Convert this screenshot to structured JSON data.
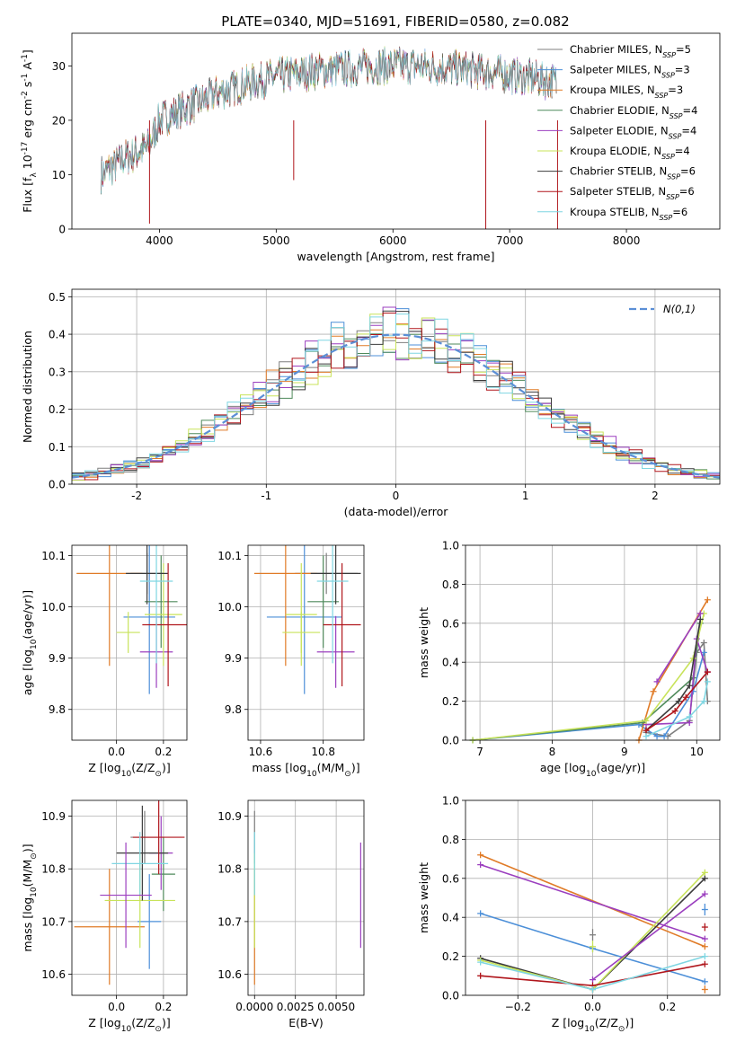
{
  "figure_title": "PLATE=0340, MJD=51691, FIBERID=0580, z=0.082",
  "model_colors": {
    "Chabrier MILES": "#7f7f7f",
    "Salpeter MILES": "#4c8fd8",
    "Kroupa MILES": "#e07b27",
    "Chabrier ELODIE": "#4f8a5b",
    "Salpeter ELODIE": "#9b3fbf",
    "Kroupa ELODIE": "#c8e35a",
    "Chabrier STELIB": "#3b3b3b",
    "Salpeter STELIB": "#b0161c",
    "Kroupa STELIB": "#7fd6e2"
  },
  "chart_data": [
    {
      "type": "line",
      "id": "spectrum",
      "title": "PLATE=0340, MJD=51691, FIBERID=0580, z=0.082",
      "xlabel": "wavelength [Angstrom, rest frame]",
      "ylabel": "Flux [f_λ 10^-17 erg cm^-2 s^-1 A^-1]",
      "xlim": [
        3250,
        8800
      ],
      "ylim": [
        0,
        36
      ],
      "xticks": [
        4000,
        5000,
        6000,
        7000,
        8000
      ],
      "yticks": [
        0,
        10,
        20,
        30
      ],
      "grid": false,
      "legend_position": "top-right",
      "legend": [
        "Chabrier MILES, N_SSP=5",
        "Salpeter MILES, N_SSP=3",
        "Kroupa MILES, N_SSP=3",
        "Chabrier ELODIE, N_SSP=4",
        "Salpeter ELODIE, N_SSP=4",
        "Kroupa ELODIE, N_SSP=4",
        "Chabrier STELIB, N_SSP=6",
        "Salpeter STELIB, N_SSP=6",
        "Kroupa STELIB, N_SSP=6"
      ],
      "series_keys": [
        "Chabrier MILES",
        "Salpeter MILES",
        "Kroupa MILES",
        "Chabrier ELODIE",
        "Salpeter ELODIE",
        "Kroupa ELODIE",
        "Chabrier STELIB",
        "Salpeter STELIB",
        "Kroupa STELIB"
      ],
      "continuum": {
        "x": [
          3500,
          3700,
          3900,
          4000,
          4200,
          4500,
          4800,
          5000,
          5300,
          5600,
          5900,
          6200,
          6500,
          6800,
          7100,
          7400
        ],
        "y": [
          10,
          13,
          15,
          20,
          22,
          25,
          27,
          28,
          29,
          29.5,
          30,
          30,
          29.5,
          29,
          28,
          27
        ]
      },
      "xrange_data": [
        3500,
        7400
      ]
    },
    {
      "type": "line",
      "id": "residuals",
      "xlabel": "(data-model)/error",
      "ylabel": "Normed distribution",
      "xlim": [
        -2.5,
        2.5
      ],
      "ylim": [
        0,
        0.52
      ],
      "xticks": [
        -2,
        -1,
        0,
        1,
        2
      ],
      "yticks": [
        0.0,
        0.1,
        0.2,
        0.3,
        0.4,
        0.5
      ],
      "grid": true,
      "legend_position": "top-right",
      "reference_curve": {
        "name": "N(0,1)",
        "mean": 0,
        "sigma": 1,
        "color": "#5b8fd6"
      },
      "bin_width": 0.1,
      "bin_start": -2.5,
      "series_keys": [
        "Chabrier MILES",
        "Salpeter MILES",
        "Kroupa MILES",
        "Chabrier ELODIE",
        "Salpeter ELODIE",
        "Kroupa ELODIE",
        "Chabrier STELIB",
        "Salpeter STELIB",
        "Kroupa STELIB"
      ]
    },
    {
      "type": "scatter",
      "id": "age_vs_Z",
      "xlabel": "Z [log10(Z/Z☉)]",
      "ylabel": "age  [log10(age/yr)]",
      "xlim": [
        -0.19,
        0.3
      ],
      "ylim": [
        9.74,
        10.12
      ],
      "xticks": [
        0.0,
        0.2
      ],
      "xticklabels": [
        "0.0",
        "0.2"
      ],
      "yticks": [
        9.8,
        9.9,
        10.0,
        10.1
      ],
      "yticklabels": [
        "9.8",
        "9.9",
        "10.0",
        "10.1"
      ],
      "grid": true,
      "points": [
        {
          "key": "Chabrier MILES",
          "x": 0.13,
          "y": 10.065,
          "xerr": 0.07,
          "yerr": 0.04
        },
        {
          "key": "Salpeter MILES",
          "x": 0.14,
          "y": 9.98,
          "xerr": 0.11,
          "yerr": 0.15
        },
        {
          "key": "Kroupa MILES",
          "x": -0.03,
          "y": 10.065,
          "xerr": 0.14,
          "yerr": 0.18
        },
        {
          "key": "Chabrier ELODIE",
          "x": 0.19,
          "y": 10.01,
          "xerr": 0.07,
          "yerr": 0.09
        },
        {
          "key": "Salpeter ELODIE",
          "x": 0.17,
          "y": 9.912,
          "xerr": 0.07,
          "yerr": 0.07
        },
        {
          "key": "Kroupa ELODIE",
          "x": 0.2,
          "y": 9.985,
          "xerr": 0.08,
          "yerr": 0.1
        },
        {
          "key": "Chabrier STELIB",
          "x": 0.13,
          "y": 10.065,
          "xerr": 0.09,
          "yerr": 0.06
        },
        {
          "key": "Salpeter STELIB",
          "x": 0.22,
          "y": 9.965,
          "xerr": 0.11,
          "yerr": 0.12
        },
        {
          "key": "Kroupa STELIB",
          "x": 0.17,
          "y": 10.05,
          "xerr": 0.07,
          "yerr": 0.16
        },
        {
          "key": "Kroupa ELODIE",
          "x": 0.05,
          "y": 9.95,
          "xerr": 0.05,
          "yerr": 0.04
        }
      ]
    },
    {
      "type": "scatter",
      "id": "age_vs_mass",
      "xlabel": "mass [log10(M/M☉)]",
      "ylabel": "",
      "xlim": [
        10.56,
        10.93
      ],
      "ylim": [
        9.74,
        10.12
      ],
      "xticks": [
        10.6,
        10.8
      ],
      "xticklabels": [
        "10.6",
        "10.8"
      ],
      "yticks": [
        9.8,
        9.9,
        10.0,
        10.1
      ],
      "yticklabels": [
        "9.8",
        "9.9",
        "10.0",
        "10.1"
      ],
      "grid": true,
      "points": [
        {
          "key": "Chabrier MILES",
          "x": 10.81,
          "y": 10.065,
          "xerr": 0.1,
          "yerr": 0.04
        },
        {
          "key": "Salpeter MILES",
          "x": 10.74,
          "y": 9.98,
          "xerr": 0.12,
          "yerr": 0.15
        },
        {
          "key": "Kroupa MILES",
          "x": 10.68,
          "y": 10.065,
          "xerr": 0.1,
          "yerr": 0.18
        },
        {
          "key": "Chabrier ELODIE",
          "x": 10.8,
          "y": 10.01,
          "xerr": 0.05,
          "yerr": 0.09
        },
        {
          "key": "Salpeter ELODIE",
          "x": 10.84,
          "y": 9.912,
          "xerr": 0.06,
          "yerr": 0.07
        },
        {
          "key": "Kroupa ELODIE",
          "x": 10.73,
          "y": 9.985,
          "xerr": 0.05,
          "yerr": 0.1
        },
        {
          "key": "Chabrier STELIB",
          "x": 10.84,
          "y": 10.065,
          "xerr": 0.08,
          "yerr": 0.06
        },
        {
          "key": "Salpeter STELIB",
          "x": 10.86,
          "y": 9.965,
          "xerr": 0.06,
          "yerr": 0.12
        },
        {
          "key": "Kroupa STELIB",
          "x": 10.83,
          "y": 10.05,
          "xerr": 0.05,
          "yerr": 0.16
        },
        {
          "key": "Kroupa ELODIE",
          "x": 10.73,
          "y": 9.95,
          "xerr": 0.06,
          "yerr": 0.04
        }
      ]
    },
    {
      "type": "line",
      "id": "weight_vs_age",
      "xlabel": "age  [log10(age/yr)]",
      "ylabel": "mass weight",
      "xlim": [
        6.8,
        10.32
      ],
      "ylim": [
        0,
        1.0
      ],
      "xticks": [
        7,
        8,
        9,
        10
      ],
      "yticks": [
        0.0,
        0.2,
        0.4,
        0.6,
        0.8,
        1.0
      ],
      "grid": true,
      "series": [
        {
          "key": "Chabrier MILES",
          "x": [
            9.3,
            9.6,
            9.9,
            10.0,
            10.1,
            10.15
          ],
          "y": [
            0.04,
            0.02,
            0.1,
            0.45,
            0.5,
            0.2
          ]
        },
        {
          "key": "Salpeter MILES",
          "x": [
            6.9,
            9.2,
            9.45,
            9.55,
            9.95,
            10.1
          ],
          "y": [
            0.0,
            0.08,
            0.02,
            0.02,
            0.25,
            0.45
          ]
        },
        {
          "key": "Kroupa MILES",
          "x": [
            9.2,
            9.4,
            10.15
          ],
          "y": [
            0.0,
            0.25,
            0.72
          ]
        },
        {
          "key": "Chabrier ELODIE",
          "x": [
            6.9,
            9.25,
            9.95,
            10.05
          ],
          "y": [
            0.0,
            0.09,
            0.32,
            0.6
          ]
        },
        {
          "key": "Salpeter ELODIE",
          "x": [
            9.3,
            9.9,
            10.0,
            10.15
          ],
          "y": [
            0.08,
            0.09,
            0.52,
            0.35
          ]
        },
        {
          "key": "Kroupa ELODIE",
          "x": [
            6.9,
            9.3,
            9.95,
            10.1
          ],
          "y": [
            0.0,
            0.1,
            0.42,
            0.65
          ]
        },
        {
          "key": "Chabrier STELIB",
          "x": [
            9.3,
            9.75,
            9.9,
            10.05
          ],
          "y": [
            0.05,
            0.2,
            0.28,
            0.62
          ]
        },
        {
          "key": "Salpeter STELIB",
          "x": [
            9.3,
            9.7,
            9.85,
            10.15
          ],
          "y": [
            0.05,
            0.15,
            0.22,
            0.35
          ]
        },
        {
          "key": "Kroupa STELIB",
          "x": [
            9.3,
            9.9,
            10.1,
            10.15
          ],
          "y": [
            0.02,
            0.12,
            0.2,
            0.3
          ]
        },
        {
          "key": "Salpeter ELODIE",
          "x": [
            9.45,
            10.05
          ],
          "y": [
            0.3,
            0.65
          ]
        }
      ]
    },
    {
      "type": "scatter",
      "id": "mass_vs_Z",
      "xlabel": "Z [log10(Z/Z☉)]",
      "ylabel": "mass [log10(M/M☉)]",
      "xlim": [
        -0.19,
        0.3
      ],
      "ylim": [
        10.56,
        10.93
      ],
      "xticks": [
        0.0,
        0.2
      ],
      "xticklabels": [
        "0.0",
        "0.2"
      ],
      "yticks": [
        10.6,
        10.7,
        10.8,
        10.9
      ],
      "yticklabels": [
        "10.6",
        "10.7",
        "10.8",
        "10.9"
      ],
      "grid": true,
      "points": [
        {
          "key": "Chabrier MILES",
          "x": 0.12,
          "y": 10.86,
          "xerr": 0.06,
          "yerr": 0.05
        },
        {
          "key": "Salpeter MILES",
          "x": 0.14,
          "y": 10.7,
          "xerr": 0.05,
          "yerr": 0.09
        },
        {
          "key": "Kroupa MILES",
          "x": -0.03,
          "y": 10.69,
          "xerr": 0.15,
          "yerr": 0.11
        },
        {
          "key": "Chabrier ELODIE",
          "x": 0.2,
          "y": 10.79,
          "xerr": 0.05,
          "yerr": 0.07
        },
        {
          "key": "Salpeter ELODIE",
          "x": 0.19,
          "y": 10.83,
          "xerr": 0.05,
          "yerr": 0.07
        },
        {
          "key": "Kroupa ELODIE",
          "x": 0.1,
          "y": 10.74,
          "xerr": 0.15,
          "yerr": 0.09
        },
        {
          "key": "Chabrier STELIB",
          "x": 0.11,
          "y": 10.83,
          "xerr": 0.11,
          "yerr": 0.09
        },
        {
          "key": "Salpeter STELIB",
          "x": 0.18,
          "y": 10.86,
          "xerr": 0.11,
          "yerr": 0.07
        },
        {
          "key": "Kroupa STELIB",
          "x": 0.1,
          "y": 10.81,
          "xerr": 0.12,
          "yerr": 0.06
        },
        {
          "key": "Salpeter ELODIE",
          "x": 0.04,
          "y": 10.75,
          "xerr": 0.11,
          "yerr": 0.1
        }
      ]
    },
    {
      "type": "scatter",
      "id": "mass_vs_ebv",
      "xlabel": "E(B-V)",
      "ylabel": "",
      "xlim": [
        -0.0004,
        0.0067
      ],
      "ylim": [
        10.56,
        10.93
      ],
      "xticks": [
        0.0,
        0.0025,
        0.005
      ],
      "xticklabels": [
        "0.0000",
        "0.0025",
        "0.0050"
      ],
      "yticks": [
        10.6,
        10.7,
        10.8,
        10.9
      ],
      "yticklabels": [
        "10.6",
        "10.7",
        "10.8",
        "10.9"
      ],
      "grid": true,
      "points": [
        {
          "key": "Chabrier MILES",
          "x": 0.0,
          "y": 10.86,
          "xerr": 0,
          "yerr": 0.05
        },
        {
          "key": "Kroupa MILES",
          "x": 0.0,
          "y": 10.69,
          "xerr": 0,
          "yerr": 0.11
        },
        {
          "key": "Kroupa ELODIE",
          "x": 0.0,
          "y": 10.74,
          "xerr": 0,
          "yerr": 0.09
        },
        {
          "key": "Kroupa STELIB",
          "x": 0.0,
          "y": 10.81,
          "xerr": 0,
          "yerr": 0.06
        },
        {
          "key": "Salpeter ELODIE",
          "x": 0.0065,
          "y": 10.75,
          "xerr": 0,
          "yerr": 0.1
        }
      ]
    },
    {
      "type": "line",
      "id": "weight_vs_Z",
      "xlabel": "Z [log10(Z/Z☉)]",
      "ylabel": "mass weight",
      "xlim": [
        -0.34,
        0.34
      ],
      "ylim": [
        0,
        1.0
      ],
      "xticks": [
        -0.2,
        0.0,
        0.2
      ],
      "xticklabels": [
        "−0.2",
        "0.0",
        "0.2"
      ],
      "yticks": [
        0.0,
        0.2,
        0.4,
        0.6,
        0.8,
        1.0
      ],
      "grid": true,
      "series": [
        {
          "key": "Kroupa MILES",
          "x": [
            -0.3,
            0.3
          ],
          "y": [
            0.72,
            0.25
          ]
        },
        {
          "key": "Salpeter ELODIE",
          "x": [
            -0.3,
            0.3
          ],
          "y": [
            0.67,
            0.29
          ]
        },
        {
          "key": "Salpeter MILES",
          "x": [
            -0.3,
            0.0,
            0.3
          ],
          "y": [
            0.42,
            0.24,
            0.07
          ]
        },
        {
          "key": "Chabrier STELIB",
          "x": [
            -0.3,
            0.0,
            0.3
          ],
          "y": [
            0.19,
            0.03,
            0.6
          ]
        },
        {
          "key": "Kroupa ELODIE",
          "x": [
            -0.3,
            0.0,
            0.3
          ],
          "y": [
            0.18,
            0.03,
            0.63
          ]
        },
        {
          "key": "Salpeter ELODIE",
          "x": [
            0.0,
            0.3
          ],
          "y": [
            0.08,
            0.52
          ]
        },
        {
          "key": "Salpeter STELIB",
          "x": [
            -0.3,
            0.0,
            0.3
          ],
          "y": [
            0.1,
            0.05,
            0.16
          ]
        },
        {
          "key": "Kroupa STELIB",
          "x": [
            -0.3,
            0.0,
            0.3
          ],
          "y": [
            0.17,
            0.03,
            0.2
          ]
        }
      ],
      "markers": [
        {
          "key": "Chabrier MILES",
          "x": 0.0,
          "y": 0.31,
          "yerr": 0.03
        },
        {
          "key": "Kroupa ELODIE",
          "x": 0.0,
          "y": 0.25,
          "yerr": 0.03
        },
        {
          "key": "Salpeter MILES",
          "x": 0.3,
          "y": 0.44,
          "yerr": 0.03
        },
        {
          "key": "Kroupa MILES",
          "x": 0.3,
          "y": 0.03,
          "yerr": 0.02
        },
        {
          "key": "Salpeter STELIB",
          "x": 0.3,
          "y": 0.35,
          "yerr": 0.02
        }
      ]
    }
  ]
}
